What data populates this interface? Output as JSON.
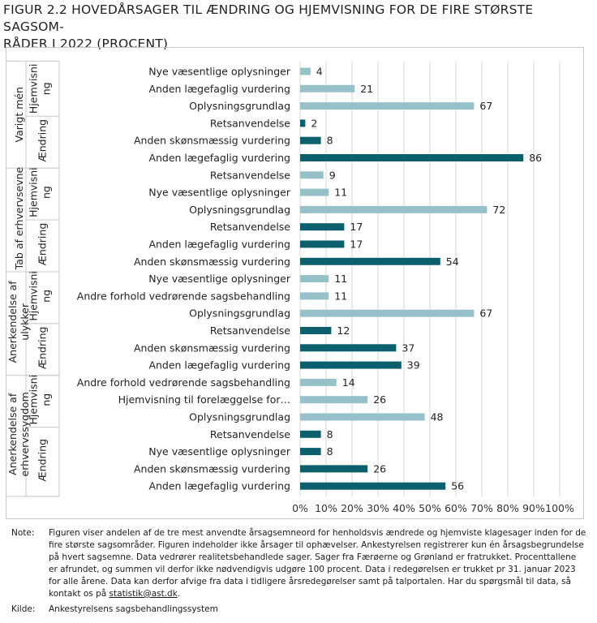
{
  "title": "FIGUR 2.2 HOVEDÅRSAGER TIL ÆNDRING OG HJEMVISNING FOR DE FIRE STØRSTE SAGSOMRÅDER I 2022 (PROCENT)",
  "title_line1": "FIGUR 2.2 HOVEDÅRSAGER TIL ÆNDRING OG HJEMVISNING FOR DE FIRE STØRSTE SAGSOM-",
  "title_line2": "RÅDER I 2022 (PROCENT)",
  "colors": {
    "hjemvisning": "#97c1c9",
    "aendring": "#0c5f6c",
    "grid": "#d9d9d9",
    "border": "#c8c8c8"
  },
  "chart_data": {
    "type": "bar",
    "orientation": "horizontal",
    "xlim": [
      0,
      100
    ],
    "x_ticks": [
      "0%",
      "10%",
      "20%",
      "30%",
      "40%",
      "50%",
      "60%",
      "70%",
      "80%",
      "90%",
      "100%"
    ],
    "grid": true,
    "groups": [
      {
        "name": "Varigt mén",
        "subgroups": [
          {
            "name": "Hjemvisning",
            "kind": "hjemvisning",
            "bars": [
              {
                "label": "Nye væsentlige oplysninger",
                "value": 4
              },
              {
                "label": "Anden lægefaglig vurdering",
                "value": 21
              },
              {
                "label": "Oplysningsgrundlag",
                "value": 67
              }
            ]
          },
          {
            "name": "Ændring",
            "kind": "aendring",
            "bars": [
              {
                "label": "Retsanvendelse",
                "value": 2
              },
              {
                "label": "Anden skønsmæssig vurdering",
                "value": 8
              },
              {
                "label": "Anden lægefaglig vurdering",
                "value": 86
              }
            ]
          }
        ]
      },
      {
        "name": "Tab af erhvervsevne",
        "subgroups": [
          {
            "name": "Hjemvisning",
            "kind": "hjemvisning",
            "bars": [
              {
                "label": "Retsanvendelse",
                "value": 9
              },
              {
                "label": "Nye væsentlige oplysninger",
                "value": 11
              },
              {
                "label": "Oplysningsgrundlag",
                "value": 72
              }
            ]
          },
          {
            "name": "Ændring",
            "kind": "aendring",
            "bars": [
              {
                "label": "Retsanvendelse",
                "value": 17
              },
              {
                "label": "Anden lægefaglig vurdering",
                "value": 17
              },
              {
                "label": "Anden skønsmæssig vurdering",
                "value": 54
              }
            ]
          }
        ]
      },
      {
        "name": "Anerkendelse af ulykker",
        "subgroups": [
          {
            "name": "Hjemvisning",
            "kind": "hjemvisning",
            "bars": [
              {
                "label": "Nye væsentlige oplysninger",
                "value": 11
              },
              {
                "label": "Andre forhold vedrørende sagsbehandling",
                "value": 11
              },
              {
                "label": "Oplysningsgrundlag",
                "value": 67
              }
            ]
          },
          {
            "name": "Ændring",
            "kind": "aendring",
            "bars": [
              {
                "label": "Retsanvendelse",
                "value": 12
              },
              {
                "label": "Anden skønsmæssig vurdering",
                "value": 37
              },
              {
                "label": "Anden lægefaglig vurdering",
                "value": 39
              }
            ]
          }
        ]
      },
      {
        "name": "Anerkendelse af erhvervssygdom",
        "subgroups": [
          {
            "name": "Hjemvisning",
            "kind": "hjemvisning",
            "bars": [
              {
                "label": "Andre forhold vedrørende sagsbehandling",
                "value": 14
              },
              {
                "label": "Hjemvisning til forelæggelse for…",
                "value": 26
              },
              {
                "label": "Oplysningsgrundlag",
                "value": 48
              }
            ]
          },
          {
            "name": "Ændring",
            "kind": "aendring",
            "bars": [
              {
                "label": "Retsanvendelse",
                "value": 8
              },
              {
                "label": "Nye væsentlige oplysninger",
                "value": 8
              },
              {
                "label": "Anden skønsmæssig vurdering",
                "value": 26
              },
              {
                "label": "Anden lægefaglig vurdering",
                "value": 56
              }
            ]
          }
        ]
      }
    ]
  },
  "note": {
    "key": "Note:",
    "text": "Figuren viser andelen af de tre mest anvendte årsagsemneord for henholdsvis ændrede og hjemviste klagesager inden for de fire største sagsområder. Figuren indeholder ikke årsager til ophævelser. Ankestyrelsen registrerer kun én årsagsbegrundelse på hvert sagsemne. Data vedrører realitetsbehandlede sager. Sager fra Færøerne og Grønland er fratrukket. Procenttallene er afrundet, og summen vil derfor ikke nødvendigvis udgøre 100 procent. Data i redegørelsen er trukket pr 31. januar 2023 for alle årene. Data kan derfor afvige fra data i tidligere årsredegørelser samt på talportalen. Har du spørgsmål til data, så kontakt os på",
    "email": "statistik@ast.dk",
    "end": "."
  },
  "source": {
    "key": "Kilde:",
    "text": "Ankestyrelsens sagsbehandlingssystem"
  }
}
